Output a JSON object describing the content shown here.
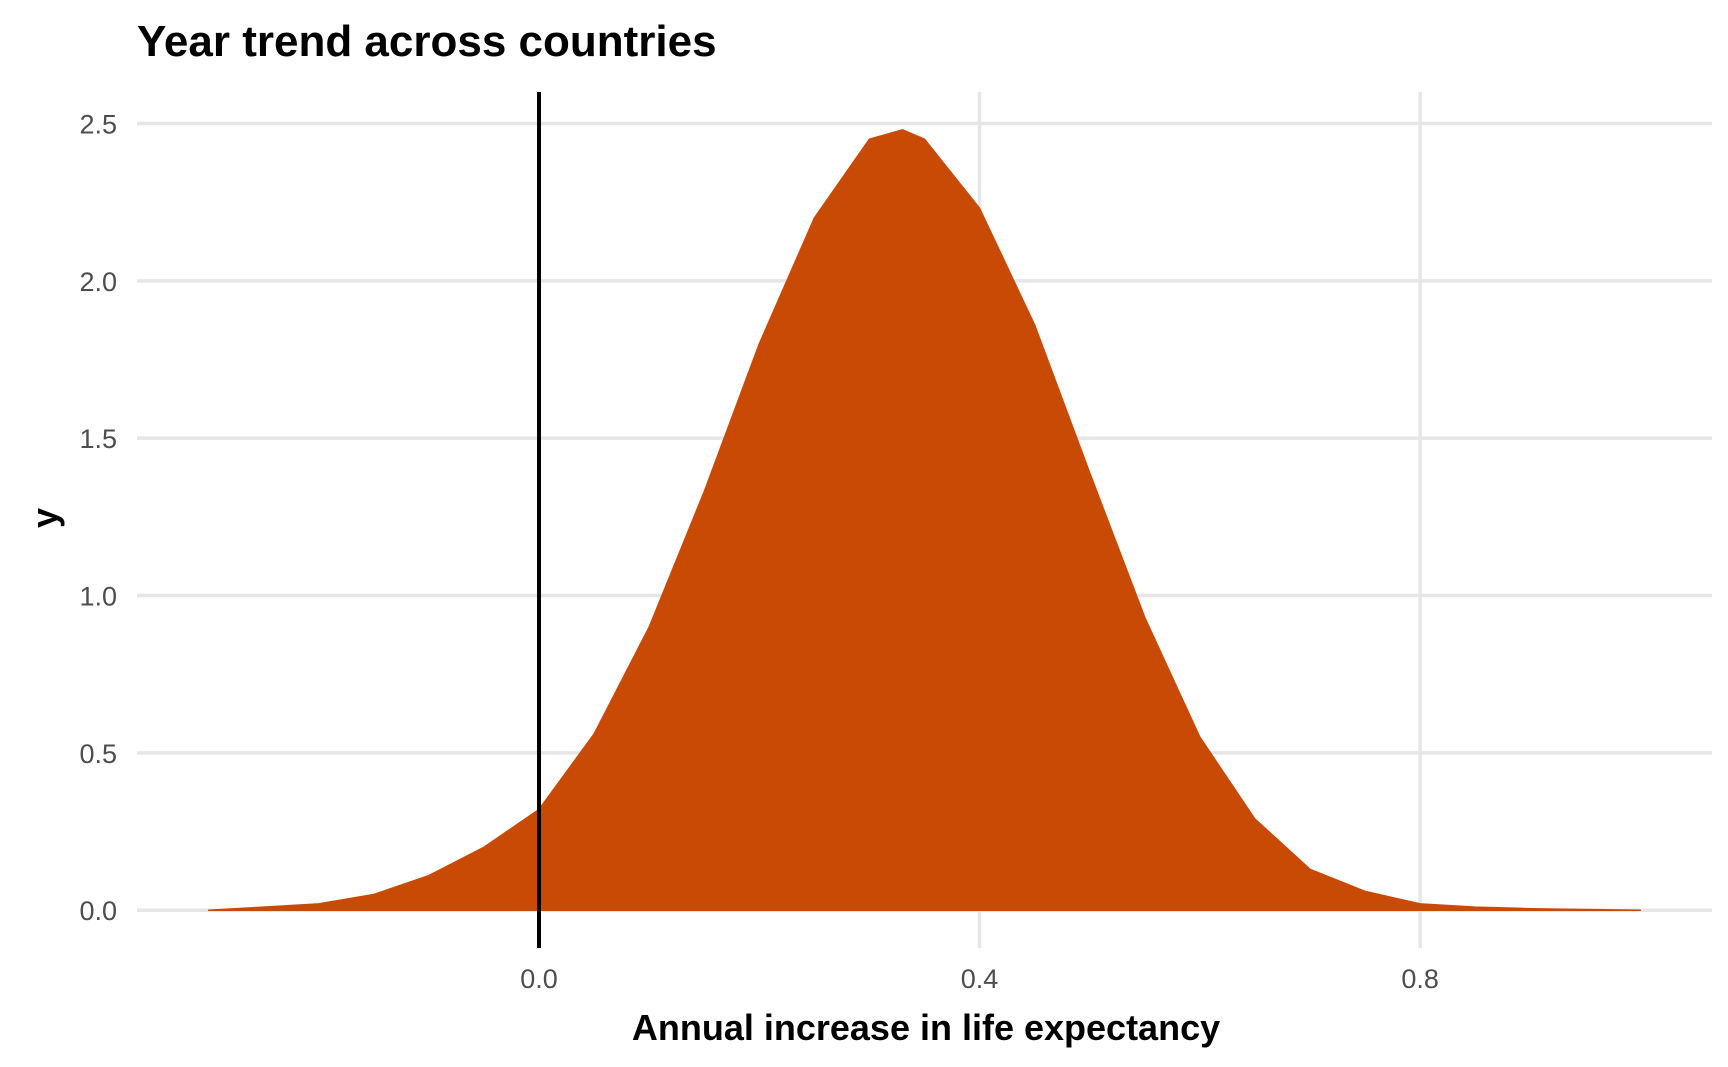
{
  "chart_data": {
    "type": "area",
    "title": "Year trend across countries",
    "xlabel": "Annual increase in life expectancy",
    "ylabel": "y",
    "x_ticks": [
      "0.0",
      "0.4",
      "0.8"
    ],
    "x_tick_values": [
      0.0,
      0.4,
      0.8
    ],
    "y_ticks": [
      "0.0",
      "0.5",
      "1.0",
      "1.5",
      "2.0",
      "2.5"
    ],
    "y_tick_values": [
      0.0,
      0.5,
      1.0,
      1.5,
      2.0,
      2.5
    ],
    "xlim": [
      -0.365,
      1.065
    ],
    "ylim": [
      -0.12,
      2.6
    ],
    "grid": true,
    "reference_line": {
      "x": 0.0,
      "color": "#000000"
    },
    "fill_color": "#c94a05",
    "series": [
      {
        "x": [
          -0.3,
          -0.25,
          -0.2,
          -0.15,
          -0.1,
          -0.05,
          0.0,
          0.05,
          0.1,
          0.15,
          0.2,
          0.25,
          0.3,
          0.33,
          0.35,
          0.4,
          0.45,
          0.5,
          0.55,
          0.6,
          0.65,
          0.7,
          0.75,
          0.8,
          0.85,
          0.9,
          1.0
        ],
        "values": [
          0.0,
          0.01,
          0.02,
          0.05,
          0.11,
          0.2,
          0.32,
          0.56,
          0.9,
          1.33,
          1.8,
          2.2,
          2.45,
          2.48,
          2.45,
          2.23,
          1.86,
          1.39,
          0.93,
          0.55,
          0.29,
          0.13,
          0.06,
          0.02,
          0.01,
          0.005,
          0.0
        ]
      }
    ]
  }
}
